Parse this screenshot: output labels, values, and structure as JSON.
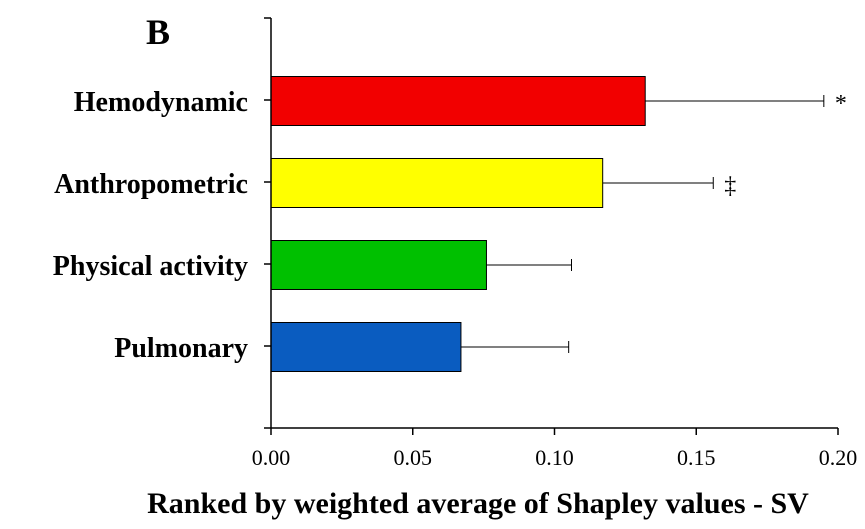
{
  "panel_label": "B",
  "chart_data": {
    "type": "bar",
    "orientation": "horizontal",
    "xlabel": "Ranked by weighted average of Shapley values - SV",
    "xlim": [
      0,
      0.2
    ],
    "xticks": [
      0.0,
      0.05,
      0.1,
      0.15,
      0.2
    ],
    "xtick_labels": [
      "0.00",
      "0.05",
      "0.10",
      "0.15",
      "0.20"
    ],
    "grid": false,
    "legend": "none",
    "categories": [
      "Hemodynamic",
      "Anthropometric",
      "Physical activity",
      "Pulmonary"
    ],
    "values": [
      0.132,
      0.117,
      0.076,
      0.067
    ],
    "errors": [
      0.063,
      0.039,
      0.03,
      0.038
    ],
    "colors": [
      "#f20000",
      "#ffff00",
      "#00c000",
      "#0a5cc0"
    ],
    "annotations": [
      "*",
      "‡",
      "",
      ""
    ]
  }
}
